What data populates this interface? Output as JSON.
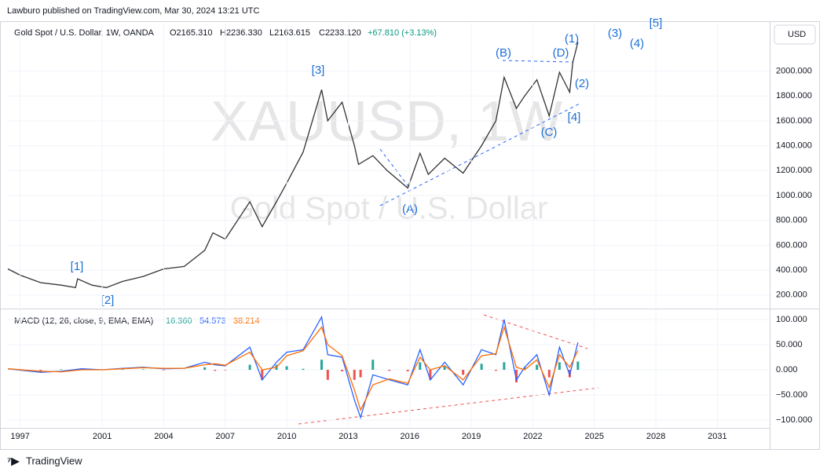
{
  "header": {
    "published": "Lawburo published on TradingView.com, Mar 30, 2024 13:21 UTC",
    "symbol": "Gold Spot / U.S. Dollar, 1W, OANDA",
    "open": "O2165.310",
    "high": "H2236.330",
    "low": "L2163.615",
    "close": "C2233.120",
    "change": "+67.810 (+3.13%)",
    "currency": "USD",
    "logo": "TradingView"
  },
  "chart_data": [
    {
      "type": "line",
      "watermark": "XAUUSD, 1W",
      "watermark_sub": "Gold Spot / U.S. Dollar",
      "color": "#333333",
      "grid": true,
      "x": [
        1996.4,
        1997,
        1998,
        1999,
        1999.7,
        1999.8,
        2000.5,
        2001.2,
        2002,
        2003,
        2004,
        2005,
        2006,
        2006.4,
        2007,
        2008.2,
        2008.8,
        2009.5,
        2010,
        2010.8,
        2011.7,
        2012,
        2012.7,
        2013.3,
        2013.5,
        2014.2,
        2014.9,
        2015.9,
        2016.5,
        2016.9,
        2017.7,
        2018.6,
        2019.5,
        2020.2,
        2020.6,
        2021.2,
        2021.6,
        2022.2,
        2022.8,
        2023.3,
        2023.8,
        2023.95,
        2024.2
      ],
      "values": [
        410,
        360,
        300,
        280,
        260,
        330,
        280,
        260,
        310,
        350,
        410,
        430,
        560,
        700,
        650,
        950,
        750,
        950,
        1100,
        1350,
        1850,
        1600,
        1750,
        1400,
        1250,
        1320,
        1200,
        1060,
        1340,
        1170,
        1300,
        1180,
        1400,
        1600,
        1950,
        1700,
        1800,
        1930,
        1640,
        1990,
        1830,
        2070,
        2233
      ],
      "xlim": [
        1996.4,
        2033.55
      ],
      "ylim": [
        98,
        2382
      ],
      "yticks": [
        {
          "value": 200,
          "label": "200.000"
        },
        {
          "value": 400,
          "label": "400.000"
        },
        {
          "value": 600,
          "label": "600.000"
        },
        {
          "value": 800,
          "label": "800.000"
        },
        {
          "value": 1000,
          "label": "1000.000"
        },
        {
          "value": 1200,
          "label": "1200.000"
        },
        {
          "value": 1400,
          "label": "1400.000"
        },
        {
          "value": 1600,
          "label": "1600.000"
        },
        {
          "value": 1800,
          "label": "1800.000"
        },
        {
          "value": 2000,
          "label": "2000.000"
        }
      ],
      "annotations": [
        "[1]",
        "[2]",
        "[3]",
        "[4]",
        "[5]",
        "(A)",
        "(B)",
        "(C)",
        "(D)",
        "(1)",
        "(2)",
        "(3)",
        "(4)"
      ]
    },
    {
      "type": "line",
      "title": "MACD (12, 26, close, 9, EMA, EMA)",
      "legend_values": [
        "16.360",
        "54.573",
        "38.214"
      ],
      "grid": true,
      "x": [
        1996.4,
        1998,
        1999,
        2000,
        2001,
        2002,
        2003,
        2004,
        2005,
        2006,
        2006.5,
        2007,
        2008.2,
        2008.8,
        2009.5,
        2010,
        2010.8,
        2011.7,
        2012,
        2012.7,
        2013.3,
        2013.6,
        2014.2,
        2015,
        2015.9,
        2016.5,
        2017,
        2017.7,
        2018.6,
        2019.5,
        2020.2,
        2020.6,
        2021.2,
        2021.6,
        2022.2,
        2022.8,
        2023.3,
        2023.8,
        2024.2
      ],
      "series": [
        {
          "name": "Histogram",
          "style": "histogram",
          "color": "#26a69a",
          "negative_color": "#ef5350",
          "values": [
            0,
            -2,
            1,
            2,
            0,
            1,
            1,
            -1,
            0,
            5,
            -2,
            -1,
            10,
            -20,
            10,
            7,
            2,
            20,
            -20,
            -3,
            -20,
            -15,
            20,
            -2,
            -3,
            15,
            -20,
            7,
            -10,
            12,
            -2,
            15,
            -25,
            5,
            10,
            -15,
            15,
            -15,
            16.36
          ]
        },
        {
          "name": "MACD",
          "style": "line",
          "color": "#2962ff",
          "values": [
            2,
            -5,
            -3,
            2,
            0,
            3,
            5,
            2,
            3,
            15,
            10,
            8,
            45,
            -20,
            15,
            35,
            40,
            105,
            30,
            25,
            -60,
            -95,
            -10,
            -20,
            -30,
            40,
            -20,
            15,
            -30,
            40,
            30,
            100,
            -20,
            5,
            30,
            -50,
            45,
            -10,
            54.573
          ]
        },
        {
          "name": "Signal",
          "style": "line",
          "color": "#ff6d00",
          "values": [
            2,
            -3,
            -4,
            0,
            0,
            2,
            4,
            3,
            3,
            10,
            12,
            9,
            35,
            0,
            5,
            28,
            38,
            85,
            50,
            28,
            -40,
            -80,
            -30,
            -18,
            -27,
            25,
            0,
            8,
            -20,
            28,
            32,
            85,
            5,
            0,
            20,
            -35,
            30,
            5,
            38.214
          ]
        }
      ],
      "xlim": [
        1996.4,
        2033.55
      ],
      "ylim": [
        -115.6,
        118.75
      ],
      "yticks": [
        {
          "value": -100,
          "label": "−100.000"
        },
        {
          "value": -50,
          "label": "−50.000"
        },
        {
          "value": 0,
          "label": "0.000"
        },
        {
          "value": 50,
          "label": "50.000"
        },
        {
          "value": 100,
          "label": "100.000"
        }
      ],
      "xticks": [
        1997,
        2001,
        2004,
        2007,
        2010,
        2013,
        2016,
        2019,
        2022,
        2025,
        2028,
        2031
      ]
    }
  ]
}
